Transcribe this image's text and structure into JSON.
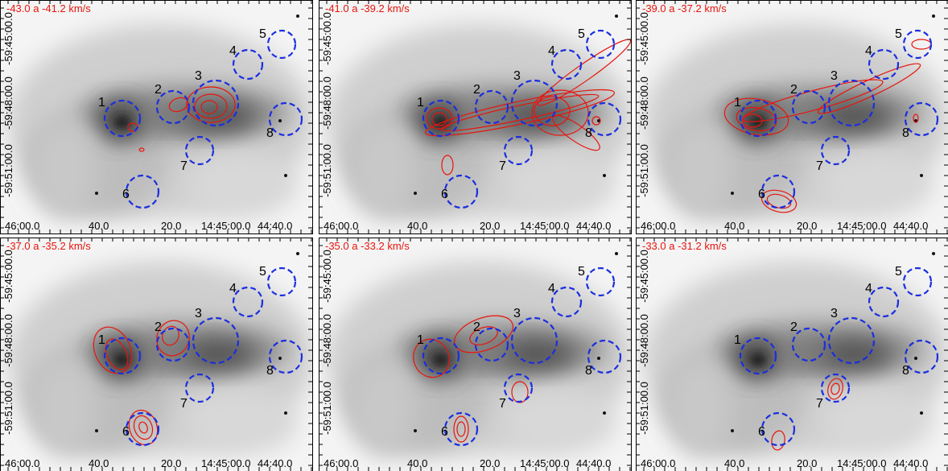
{
  "panels": [
    {
      "label": "-43.0 a -41.2 km/s"
    },
    {
      "label": "-41.0 a -39.2 km/s"
    },
    {
      "label": "-39.0 a -37.2 km/s"
    },
    {
      "label": "-37.0 a -35.2 km/s"
    },
    {
      "label": "-35.0 a -33.2 km/s"
    },
    {
      "label": "-33.0 a -31.2 km/s"
    }
  ],
  "regions": [
    "1",
    "2",
    "3",
    "4",
    "5",
    "6",
    "7",
    "8"
  ],
  "x_ticks": [
    "46:00.0",
    "40.0",
    "20.0",
    "14:45:00.0",
    "44:40.0"
  ],
  "y_ticks": [
    "-59:45:00.0",
    "-59:48:00.0",
    "-59:51:00.0"
  ]
}
